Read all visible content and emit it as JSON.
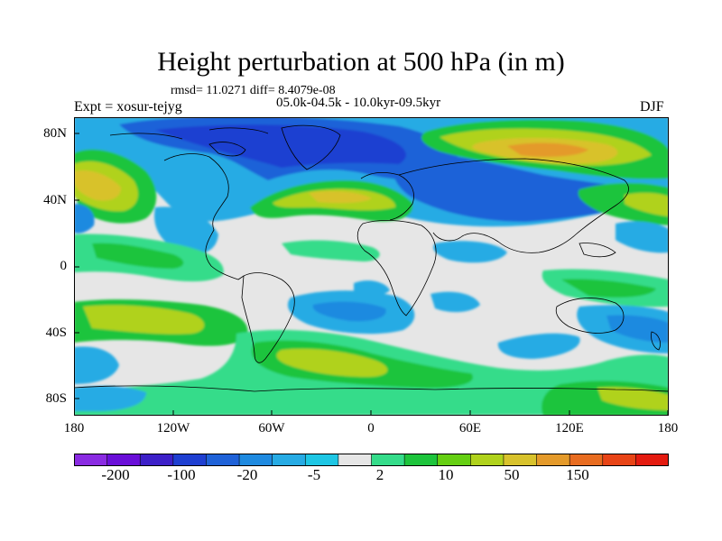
{
  "figure": {
    "title": "Height perturbation at 500 hPa (in m)",
    "stats": "rmsd= 11.0271 diff= 8.4079e-08",
    "experiment": "Expt = xosur-tejyg",
    "period": "05.0k-04.5k - 10.0kyr-09.5kyr",
    "season": "DJF"
  },
  "axes": {
    "x_ticks": [
      "180",
      "120W",
      "60W",
      "0",
      "60E",
      "120E",
      "180"
    ],
    "y_ticks": [
      "80N",
      "40N",
      "0",
      "40S",
      "80S"
    ]
  },
  "colorbar": {
    "colors": [
      "#8a2be2",
      "#6a0fd8",
      "#3d20c8",
      "#1f3fd1",
      "#1f62d8",
      "#1f8ae0",
      "#27abe4",
      "#1ec6e4",
      "#e6e6e6",
      "#35dc8a",
      "#1dc43c",
      "#65cf12",
      "#b0d21c",
      "#d8c22c",
      "#e49a2a",
      "#e86c20",
      "#e84416",
      "#e41b10"
    ],
    "labels": [
      "-200",
      "-100",
      "-20",
      "-5",
      "2",
      "10",
      "50",
      "150"
    ]
  },
  "map": {
    "background": "#e6e6e6",
    "projection": "cylindrical equidistant",
    "lon_range": [
      -180,
      180
    ],
    "lat_range": [
      -90,
      90
    ]
  }
}
